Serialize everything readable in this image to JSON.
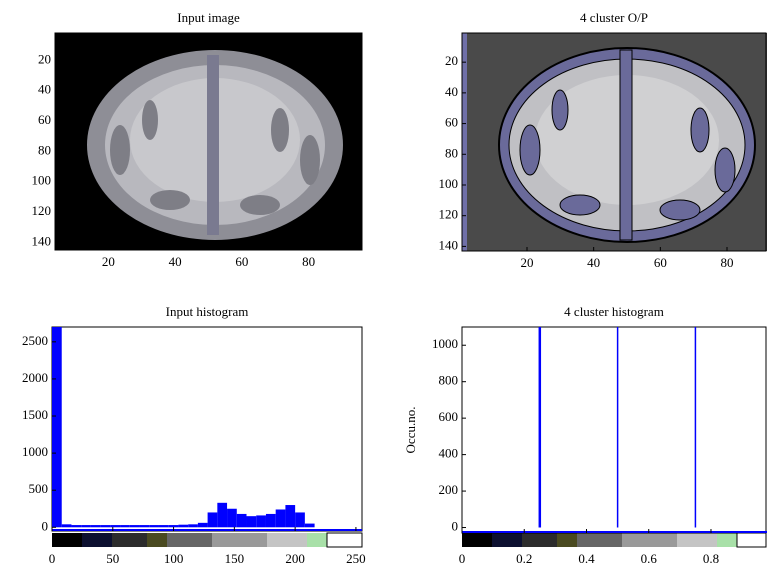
{
  "chart_data": [
    {
      "type": "image",
      "title": "Input image",
      "xlim": [
        4,
        96
      ],
      "xticks": [
        20,
        40,
        60,
        80
      ],
      "ylim": [
        2,
        145
      ],
      "yticks": [
        20,
        40,
        60,
        80,
        100,
        120,
        140
      ]
    },
    {
      "type": "image",
      "title": "4 cluster O/P",
      "xlim": [
        0.5,
        92
      ],
      "xticks": [
        20,
        40,
        60,
        80
      ],
      "ylim": [
        1,
        143
      ],
      "yticks": [
        20,
        40,
        60,
        80,
        100,
        120,
        140
      ]
    },
    {
      "type": "histogram",
      "title": "Input histogram",
      "color": "#0000ff",
      "bins": [
        0,
        8,
        16,
        24,
        32,
        40,
        48,
        56,
        64,
        72,
        80,
        88,
        96,
        104,
        112,
        120,
        128,
        136,
        144,
        152,
        160,
        168,
        176,
        184,
        192,
        200,
        208,
        216,
        224,
        232,
        240,
        248,
        256
      ],
      "values": [
        2700,
        40,
        30,
        30,
        30,
        30,
        30,
        30,
        30,
        30,
        30,
        30,
        30,
        35,
        40,
        60,
        200,
        330,
        250,
        180,
        150,
        160,
        180,
        240,
        300,
        200,
        50,
        0,
        0,
        0,
        0,
        0
      ],
      "xlim": [
        0,
        255
      ],
      "xticks": [
        0,
        50,
        100,
        150,
        200,
        250
      ],
      "ylim": [
        -50,
        2700
      ],
      "yticks": [
        0,
        500,
        1000,
        1500,
        2000,
        2500
      ]
    },
    {
      "type": "stem",
      "title": "4 cluster histogram",
      "ylabel": "Occu.no.",
      "color": "#0000ff",
      "x": [
        0.25,
        0.5,
        0.75
      ],
      "values": [
        1100,
        1100,
        1100
      ],
      "xlim": [
        0,
        0.98
      ],
      "xticks": [
        0,
        0.2,
        0.4,
        0.6,
        0.8
      ],
      "ylim": [
        -30,
        1100
      ],
      "yticks": [
        0,
        200,
        400,
        600,
        800,
        1000
      ]
    }
  ]
}
